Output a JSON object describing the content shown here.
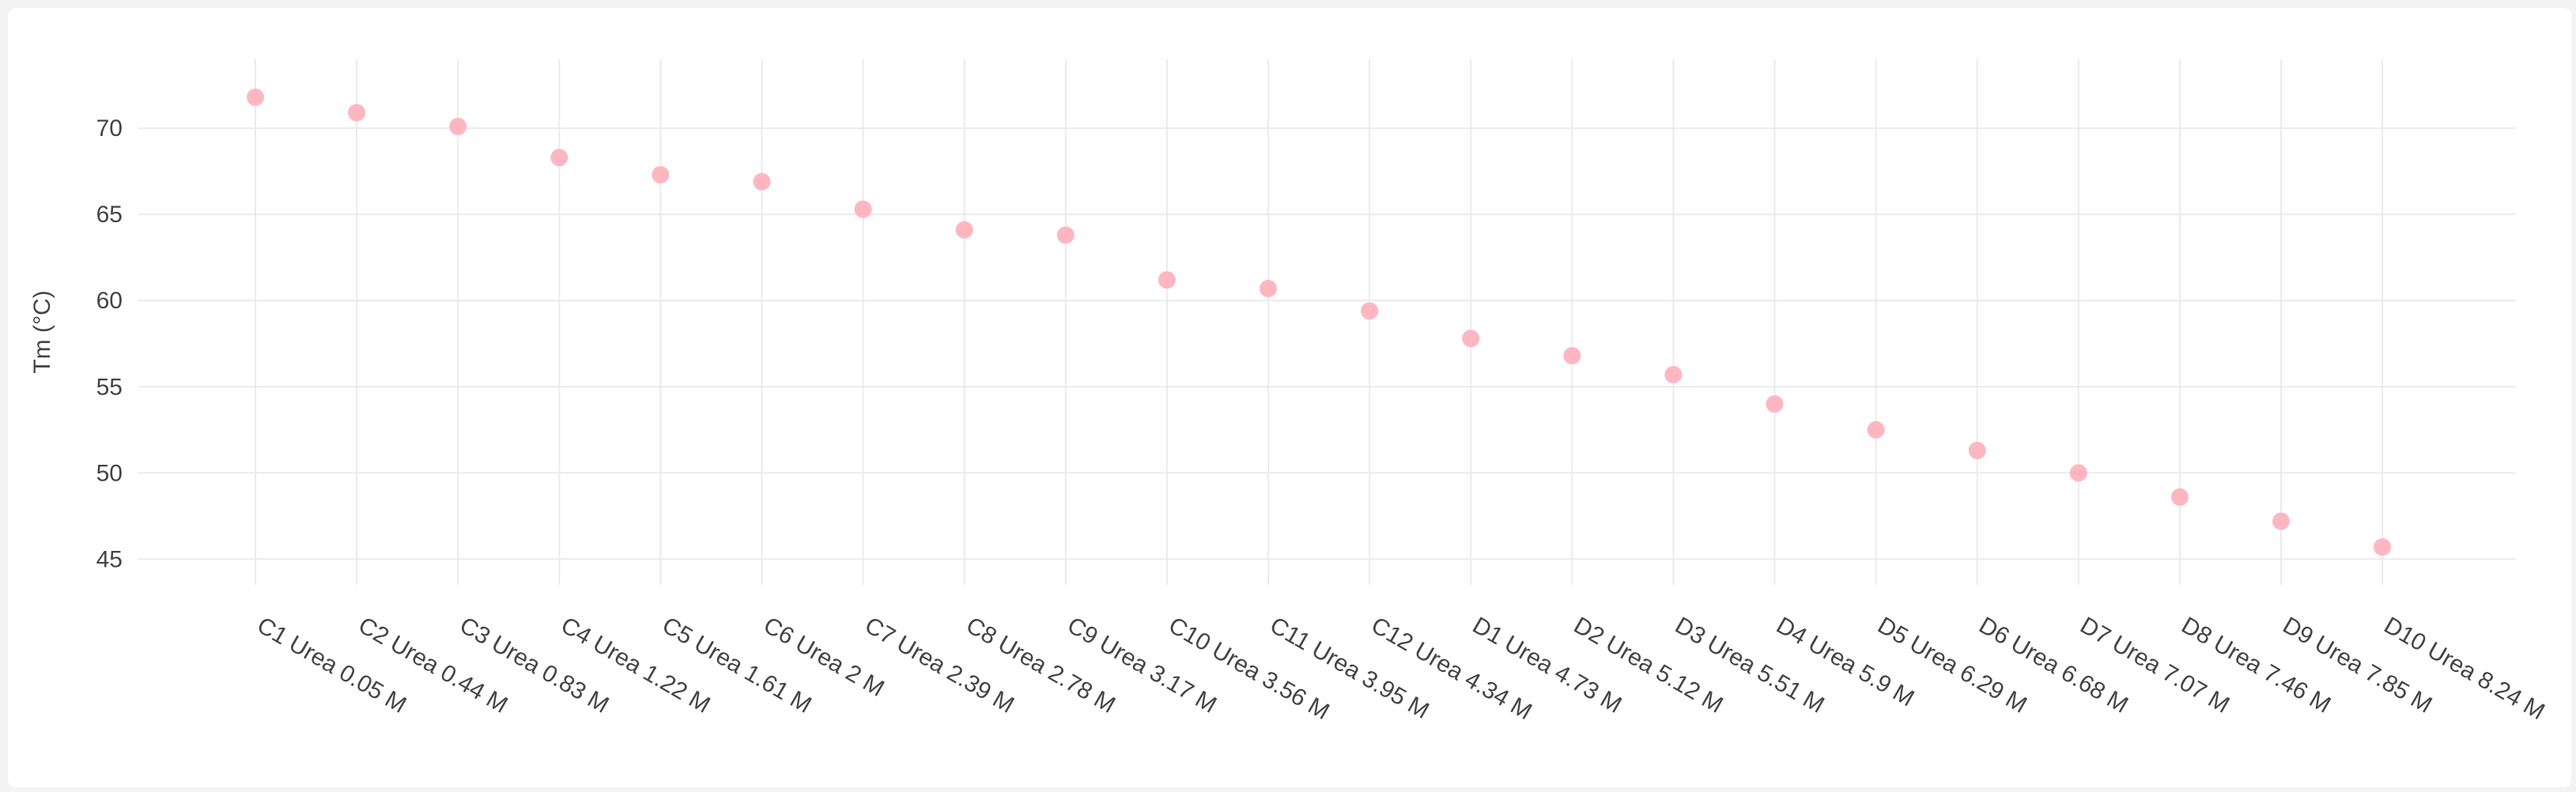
{
  "chart_data": {
    "type": "scatter",
    "title": "",
    "xlabel": "",
    "ylabel": "Tm (°C)",
    "ylim": [
      43.5,
      74
    ],
    "yticks": [
      45,
      50,
      55,
      60,
      65,
      70
    ],
    "grid": true,
    "legend": "none",
    "marker_color": "#ffb6c1",
    "categories": [
      "C1 Urea 0.05 M",
      "C2 Urea 0.44 M",
      "C3 Urea 0.83 M",
      "C4 Urea 1.22 M",
      "C5 Urea 1.61 M",
      "C6 Urea 2 M",
      "C7 Urea 2.39 M",
      "C8 Urea 2.78 M",
      "C9 Urea 3.17 M",
      "C10 Urea 3.56 M",
      "C11 Urea 3.95 M",
      "C12 Urea 4.34 M",
      "D1 Urea 4.73 M",
      "D2 Urea 5.12 M",
      "D3 Urea 5.51 M",
      "D4 Urea 5.9 M",
      "D5 Urea 6.29 M",
      "D6 Urea 6.68 M",
      "D7 Urea 7.07 M",
      "D8 Urea 7.46 M",
      "D9 Urea 7.85 M",
      "D10 Urea 8.24 M"
    ],
    "values": [
      71.8,
      70.9,
      70.1,
      68.3,
      67.3,
      66.9,
      65.3,
      64.1,
      63.8,
      61.2,
      60.7,
      59.4,
      57.8,
      56.8,
      55.7,
      54.0,
      52.5,
      51.3,
      50.0,
      48.6,
      47.2,
      45.7
    ]
  }
}
